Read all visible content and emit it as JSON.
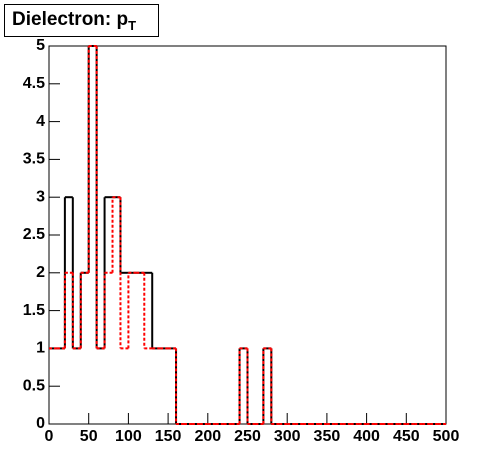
{
  "chart_data": {
    "type": "histogram",
    "title": "Dielectron: p",
    "title_subscript": "T",
    "bins": [
      0,
      10,
      20,
      30,
      40,
      50,
      60,
      70,
      80,
      90,
      100,
      110,
      120,
      130,
      140,
      150,
      160,
      170,
      180,
      190,
      200,
      210,
      220,
      230,
      240,
      250,
      260,
      270,
      280,
      290,
      300,
      310,
      320,
      330,
      340,
      350,
      360,
      370,
      380,
      390,
      400,
      410,
      420,
      430,
      440,
      450,
      460,
      470,
      480,
      490,
      500
    ],
    "series": [
      {
        "color": "#000000",
        "dash": false,
        "values": [
          1,
          1,
          3,
          1,
          2,
          5,
          1,
          3,
          3,
          2,
          2,
          2,
          2,
          1,
          1,
          1,
          0,
          0,
          0,
          0,
          0,
          0,
          0,
          0,
          1,
          0,
          0,
          1,
          0,
          0,
          0,
          0,
          0,
          0,
          0,
          0,
          0,
          0,
          0,
          0,
          0,
          0,
          0,
          0,
          0,
          0,
          0,
          0,
          0,
          0
        ]
      },
      {
        "color": "#ff0000",
        "dash": true,
        "values": [
          1,
          1,
          2,
          1,
          2,
          5,
          1,
          2,
          3,
          1,
          2,
          2,
          1,
          1,
          1,
          1,
          0,
          0,
          0,
          0,
          0,
          0,
          0,
          0,
          1,
          0,
          0,
          1,
          0,
          0,
          0,
          0,
          0,
          0,
          0,
          0,
          0,
          0,
          0,
          0,
          0,
          0,
          0,
          0,
          0,
          0,
          0,
          0,
          0,
          0
        ]
      }
    ],
    "xlim": [
      0,
      500
    ],
    "ylim": [
      0,
      5
    ],
    "xticks": [
      0,
      50,
      100,
      150,
      200,
      250,
      300,
      350,
      400,
      450,
      500
    ],
    "yticks": [
      0,
      0.5,
      1,
      1.5,
      2,
      2.5,
      3,
      3.5,
      4,
      4.5,
      5
    ]
  }
}
